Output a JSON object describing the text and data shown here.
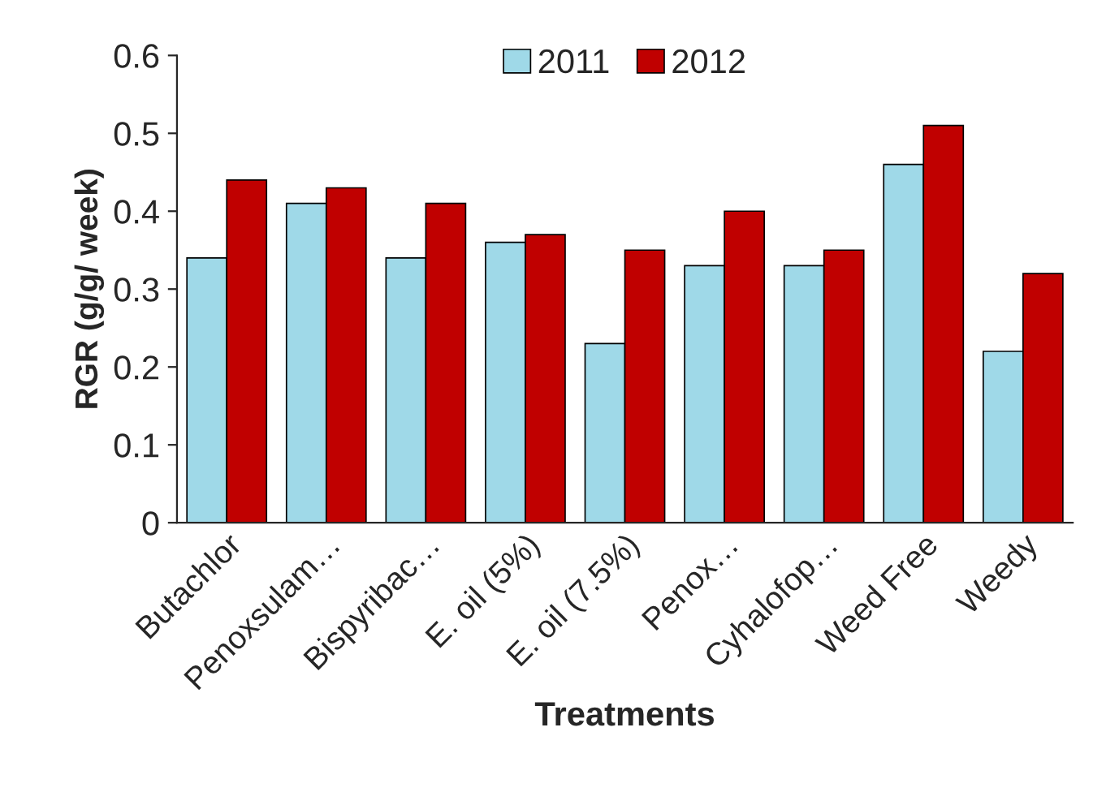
{
  "chart_data": {
    "type": "bar",
    "xlabel": "Treatments",
    "ylabel": "RGR (g/g/ week)",
    "categories": [
      "Butachlor",
      "Penoxsulam…",
      "Bispyribac…",
      "E. oil (5%)",
      "E. oil (7.5%)",
      "Penox…",
      "Cyhalofop…",
      "Weed Free",
      "Weedy"
    ],
    "series": [
      {
        "name": "2011",
        "color": "#9fd9e8",
        "values": [
          0.34,
          0.41,
          0.34,
          0.36,
          0.23,
          0.33,
          0.33,
          0.46,
          0.22
        ]
      },
      {
        "name": "2012",
        "color": "#c00000",
        "values": [
          0.44,
          0.43,
          0.41,
          0.37,
          0.35,
          0.4,
          0.35,
          0.51,
          0.32
        ]
      }
    ],
    "ylim": [
      0,
      0.6
    ],
    "yticks": [
      0,
      0.1,
      0.2,
      0.3,
      0.4,
      0.5,
      0.6
    ],
    "grid": false,
    "legend": "top"
  }
}
